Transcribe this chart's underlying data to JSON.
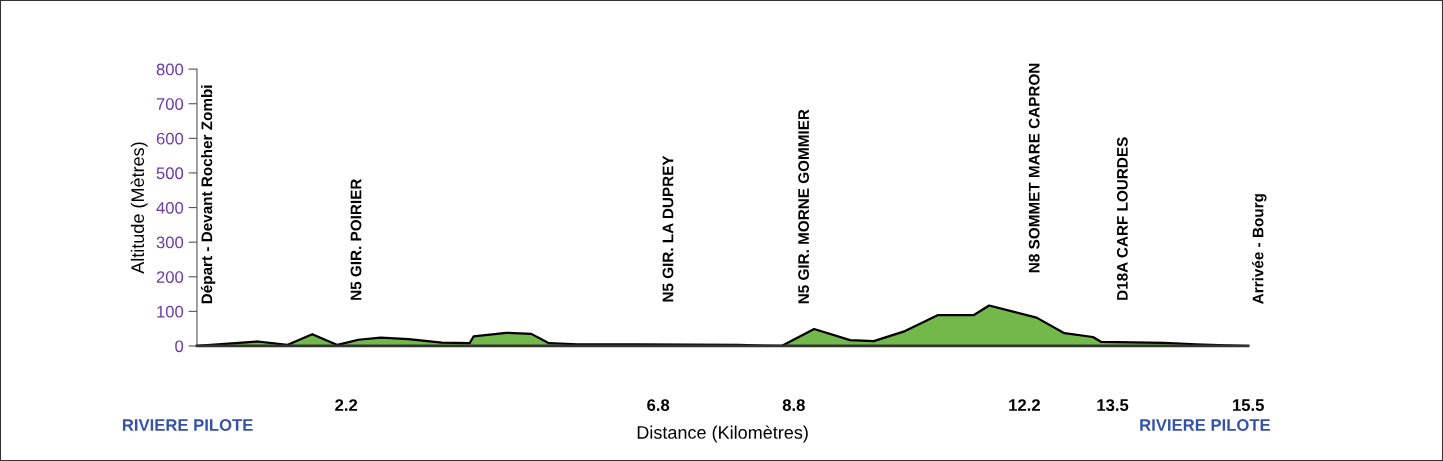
{
  "chart_data": {
    "type": "area",
    "xlabel": "Distance (Kilomètres)",
    "ylabel": "Altitude (Mètres)",
    "x": [
      0,
      0.9,
      1.33,
      1.7,
      2.07,
      2.38,
      2.71,
      3.12,
      3.61,
      4.02,
      4.08,
      4.56,
      4.93,
      5.19,
      5.61,
      6.51,
      7.99,
      8.62,
      9.1,
      9.63,
      9.98,
      10.44,
      10.92,
      11.45,
      11.68,
      12.02,
      12.38,
      12.79,
      13.21,
      13.33,
      14.26,
      14.73,
      15.5
    ],
    "series": [
      {
        "color": "#72b84a",
        "values": [
          0,
          13,
          3,
          34,
          3,
          18,
          24,
          20,
          10,
          8,
          28,
          38,
          35,
          8,
          5,
          5,
          3,
          0,
          49,
          17,
          14,
          43,
          89,
          89,
          117,
          100,
          82,
          37,
          26,
          12,
          9,
          5,
          0
        ]
      }
    ],
    "xlim": [
      0,
      15.5
    ],
    "xticks": [
      2.2,
      6.8,
      8.8,
      12.2,
      13.5,
      15.5
    ],
    "ylim": [
      0,
      800
    ],
    "yticks": [
      0,
      100,
      200,
      300,
      400,
      500,
      600,
      700,
      800
    ],
    "annotations": [
      {
        "text": "Départ - Devant Rocher Zombi",
        "x": 0,
        "y": 0
      },
      {
        "text": "N5 GIR. POIRIER",
        "x": 2.2,
        "y": 10
      },
      {
        "text": "N5 GIR. LA DUPREY",
        "x": 6.8,
        "y": 5
      },
      {
        "text": "N5 GIR. MORNE GOMMIER",
        "x": 8.8,
        "y": 0
      },
      {
        "text": "N8 SOMMET MARE CAPRON",
        "x": 12.2,
        "y": 90
      },
      {
        "text": "D18A CARF LOURDES",
        "x": 13.5,
        "y": 10
      },
      {
        "text": "Arrivée - Bourg",
        "x": 15.5,
        "y": 0
      },
      "RIVIERE PILOTE",
      "RIVIERE PILOTE"
    ],
    "grid": false,
    "marker": "none",
    "line_style": "solid"
  }
}
